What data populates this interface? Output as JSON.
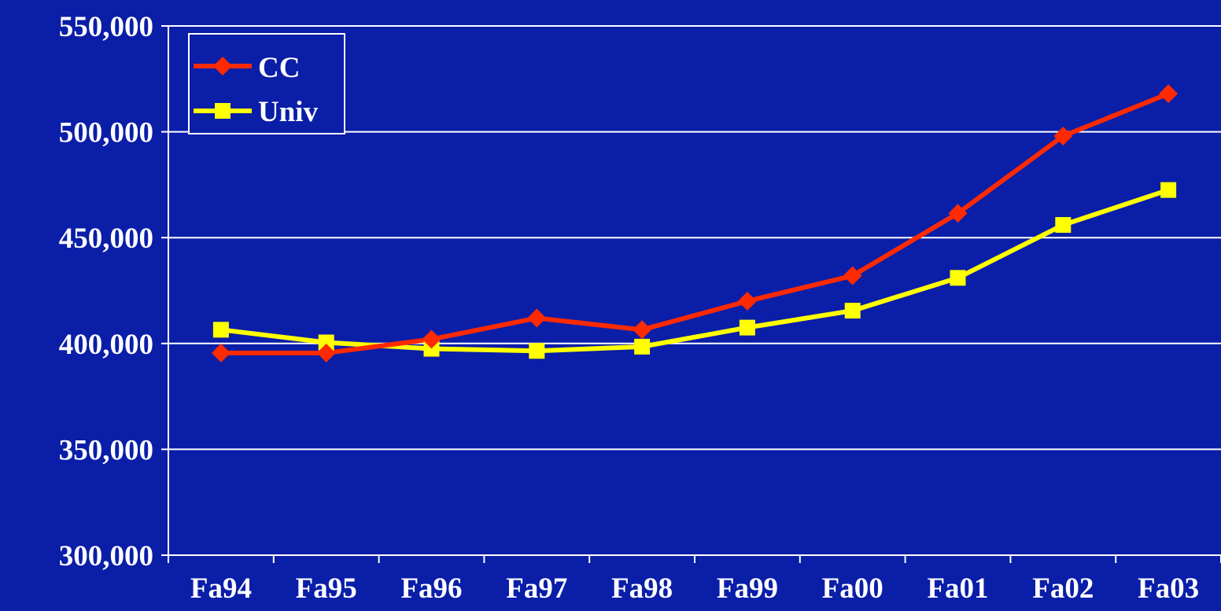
{
  "chart_data": {
    "type": "line",
    "title": "",
    "xlabel": "",
    "ylabel": "",
    "categories": [
      "Fa94",
      "Fa95",
      "Fa96",
      "Fa97",
      "Fa98",
      "Fa99",
      "Fa00",
      "Fa01",
      "Fa02",
      "Fa03"
    ],
    "ylim": [
      300000,
      550000
    ],
    "yticks": [
      300000,
      350000,
      400000,
      450000,
      500000,
      550000
    ],
    "ytick_labels": [
      "300,000",
      "350,000",
      "400,000",
      "450,000",
      "500,000",
      "550,000"
    ],
    "grid": true,
    "legend_position": "top-left",
    "series": [
      {
        "name": "CC",
        "color": "#ff2a00",
        "marker": "diamond",
        "values": [
          395500,
          395500,
          402000,
          412000,
          406500,
          420000,
          432000,
          461500,
          498000,
          518000
        ]
      },
      {
        "name": "Univ",
        "color": "#ffff00",
        "marker": "square",
        "values": [
          406500,
          400500,
          397500,
          396500,
          398500,
          407500,
          415500,
          431000,
          456000,
          472500
        ]
      }
    ]
  }
}
